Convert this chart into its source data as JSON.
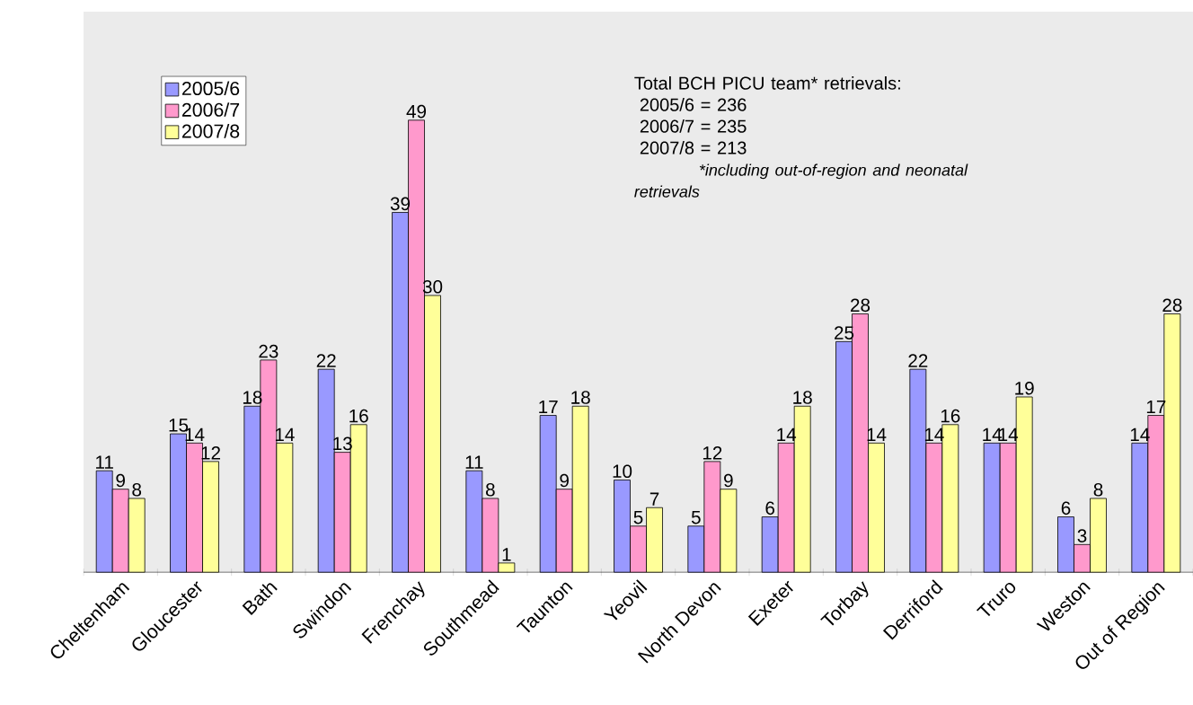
{
  "chart_data": {
    "type": "bar",
    "categories": [
      "Cheltenham",
      "Gloucester",
      "Bath",
      "Swindon",
      "Frenchay",
      "Southmead",
      "Taunton",
      "Yeovil",
      "North Devon",
      "Exeter",
      "Torbay",
      "Derriford",
      "Truro",
      "Weston",
      "Out of Region"
    ],
    "series": [
      {
        "name": "2005/6",
        "color": "#9999ff",
        "values": [
          11,
          15,
          18,
          22,
          39,
          11,
          17,
          10,
          5,
          6,
          25,
          22,
          14,
          6,
          14
        ]
      },
      {
        "name": "2006/7",
        "color": "#ff99cc",
        "values": [
          9,
          14,
          23,
          13,
          49,
          8,
          9,
          5,
          12,
          14,
          28,
          14,
          14,
          3,
          17
        ]
      },
      {
        "name": "2007/8",
        "color": "#ffff99",
        "values": [
          8,
          12,
          14,
          16,
          30,
          1,
          18,
          7,
          9,
          18,
          14,
          16,
          19,
          8,
          28
        ]
      }
    ],
    "data_labels": true,
    "legend": "top left",
    "annotations": [
      "Total BCH PICU team* retrievals:",
      "2005/6 = 236",
      "2006/7 = 235",
      "2007/8 = 213",
      "*including out-of-region and neonatal retrievals"
    ]
  }
}
